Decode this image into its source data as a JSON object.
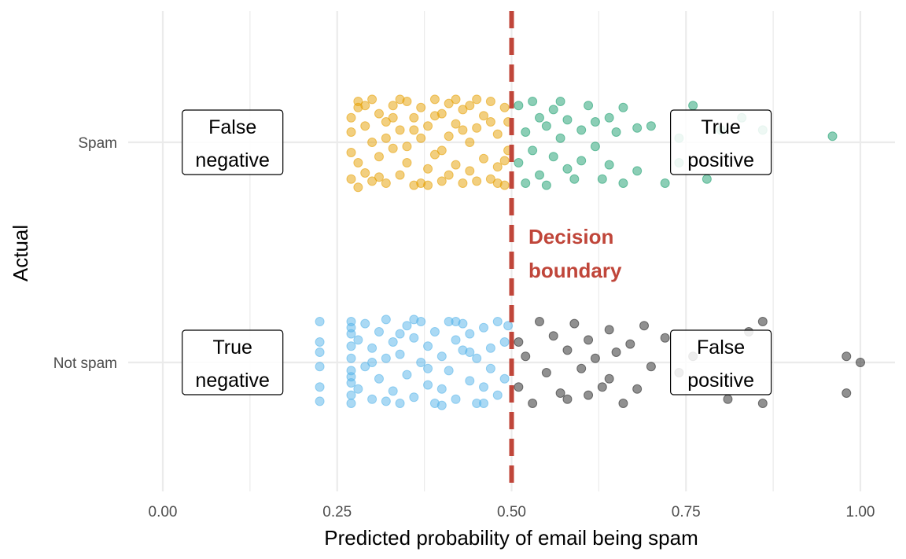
{
  "chart_data": {
    "type": "scatter",
    "xlabel": "Predicted probability of email being spam",
    "ylabel": "Actual",
    "xlim": [
      0.0,
      1.05
    ],
    "x_ticks": [
      "0.00",
      "0.25",
      "0.50",
      "0.75",
      "1.00"
    ],
    "x_tick_values": [
      0.0,
      0.25,
      0.5,
      0.75,
      1.0
    ],
    "categories": [
      "Not spam",
      "Spam"
    ],
    "grid": true,
    "decision_boundary": {
      "x": 0.5,
      "label_lines": [
        "Decision",
        "boundary"
      ],
      "color": "#c0463a"
    },
    "quadrant_labels": [
      {
        "lines": [
          "False",
          "negative"
        ],
        "x": 0.1,
        "category": "Spam"
      },
      {
        "lines": [
          "True",
          "positive"
        ],
        "x": 0.8,
        "category": "Spam"
      },
      {
        "lines": [
          "True",
          "negative"
        ],
        "x": 0.1,
        "category": "Not spam"
      },
      {
        "lines": [
          "False",
          "positive"
        ],
        "x": 0.8,
        "category": "Not spam"
      }
    ],
    "series": [
      {
        "category": "Spam",
        "outcome": "false negative",
        "color": "#e69f00",
        "points": [
          [
            0.27,
            0.12
          ],
          [
            0.27,
            -0.18
          ],
          [
            0.27,
            0.05
          ],
          [
            0.28,
            -0.1
          ],
          [
            0.28,
            0.17
          ],
          [
            0.27,
            -0.05
          ],
          [
            0.28,
            0.2
          ],
          [
            0.28,
            -0.22
          ],
          [
            0.29,
            0.08
          ],
          [
            0.29,
            -0.15
          ],
          [
            0.3,
            0.21
          ],
          [
            0.3,
            0.0
          ],
          [
            0.3,
            -0.19
          ],
          [
            0.31,
            0.14
          ],
          [
            0.31,
            -0.07
          ],
          [
            0.32,
            0.1
          ],
          [
            0.32,
            -0.2
          ],
          [
            0.33,
            0.18
          ],
          [
            0.33,
            -0.03
          ],
          [
            0.34,
            0.06
          ],
          [
            0.34,
            -0.16
          ],
          [
            0.35,
            0.2
          ],
          [
            0.35,
            -0.1
          ],
          [
            0.36,
            0.12
          ],
          [
            0.36,
            -0.21
          ],
          [
            0.37,
            0.02
          ],
          [
            0.37,
            0.17
          ],
          [
            0.38,
            -0.13
          ],
          [
            0.38,
            0.08
          ],
          [
            0.39,
            0.21
          ],
          [
            0.39,
            -0.06
          ],
          [
            0.4,
            0.14
          ],
          [
            0.4,
            -0.19
          ],
          [
            0.41,
            0.03
          ],
          [
            0.41,
            0.19
          ],
          [
            0.42,
            -0.11
          ],
          [
            0.42,
            0.09
          ],
          [
            0.43,
            -0.2
          ],
          [
            0.43,
            0.16
          ],
          [
            0.44,
            0.0
          ],
          [
            0.44,
            -0.14
          ],
          [
            0.45,
            0.21
          ],
          [
            0.45,
            0.07
          ],
          [
            0.46,
            -0.08
          ],
          [
            0.46,
            0.13
          ],
          [
            0.47,
            -0.18
          ],
          [
            0.47,
            0.2
          ],
          [
            0.48,
            0.04
          ],
          [
            0.48,
            -0.12
          ],
          [
            0.49,
            0.17
          ],
          [
            0.49,
            -0.21
          ],
          [
            0.495,
            0.1
          ],
          [
            0.495,
            -0.04
          ],
          [
            0.29,
            0.18
          ],
          [
            0.31,
            -0.17
          ],
          [
            0.33,
            0.12
          ],
          [
            0.35,
            -0.02
          ],
          [
            0.37,
            -0.2
          ],
          [
            0.39,
            0.13
          ],
          [
            0.41,
            -0.16
          ],
          [
            0.43,
            0.06
          ],
          [
            0.45,
            -0.19
          ],
          [
            0.47,
            0.1
          ],
          [
            0.49,
            -0.09
          ],
          [
            0.32,
            0.02
          ],
          [
            0.36,
            0.06
          ],
          [
            0.4,
            -0.04
          ],
          [
            0.44,
            0.18
          ],
          [
            0.48,
            -0.2
          ],
          [
            0.34,
            0.21
          ],
          [
            0.38,
            -0.21
          ],
          [
            0.42,
            0.21
          ]
        ]
      },
      {
        "category": "Spam",
        "outcome": "true positive",
        "color": "#1a9e6e",
        "points": [
          [
            0.51,
            0.18
          ],
          [
            0.51,
            -0.1
          ],
          [
            0.52,
            0.05
          ],
          [
            0.52,
            -0.2
          ],
          [
            0.53,
            0.2
          ],
          [
            0.53,
            -0.04
          ],
          [
            0.54,
            0.12
          ],
          [
            0.54,
            -0.16
          ],
          [
            0.55,
            0.08
          ],
          [
            0.55,
            -0.21
          ],
          [
            0.56,
            0.16
          ],
          [
            0.56,
            -0.07
          ],
          [
            0.57,
            0.02
          ],
          [
            0.57,
            0.2
          ],
          [
            0.58,
            -0.13
          ],
          [
            0.58,
            0.11
          ],
          [
            0.59,
            -0.18
          ],
          [
            0.6,
            0.06
          ],
          [
            0.6,
            -0.09
          ],
          [
            0.61,
            0.18
          ],
          [
            0.62,
            -0.02
          ],
          [
            0.62,
            0.1
          ],
          [
            0.63,
            -0.18
          ],
          [
            0.64,
            0.12
          ],
          [
            0.64,
            -0.11
          ],
          [
            0.65,
            0.05
          ],
          [
            0.66,
            -0.2
          ],
          [
            0.66,
            0.17
          ],
          [
            0.68,
            0.07
          ],
          [
            0.68,
            -0.14
          ],
          [
            0.7,
            0.08
          ],
          [
            0.72,
            -0.2
          ],
          [
            0.74,
            0.02
          ],
          [
            0.74,
            -0.1
          ],
          [
            0.76,
            0.18
          ],
          [
            0.78,
            -0.18
          ],
          [
            0.8,
            0.06
          ],
          [
            0.83,
            0.12
          ],
          [
            0.86,
            0.06
          ],
          [
            0.96,
            0.03
          ]
        ]
      },
      {
        "category": "Not spam",
        "outcome": "true negative",
        "color": "#56b4e9",
        "points": [
          [
            0.225,
            0.2
          ],
          [
            0.225,
            0.1
          ],
          [
            0.225,
            -0.02
          ],
          [
            0.225,
            -0.12
          ],
          [
            0.225,
            -0.19
          ],
          [
            0.225,
            0.05
          ],
          [
            0.27,
            0.2
          ],
          [
            0.27,
            0.14
          ],
          [
            0.27,
            0.08
          ],
          [
            0.27,
            0.02
          ],
          [
            0.27,
            -0.04
          ],
          [
            0.27,
            -0.1
          ],
          [
            0.27,
            -0.16
          ],
          [
            0.27,
            -0.2
          ],
          [
            0.27,
            0.17
          ],
          [
            0.27,
            -0.07
          ],
          [
            0.28,
            0.11
          ],
          [
            0.28,
            -0.13
          ],
          [
            0.29,
            0.19
          ],
          [
            0.29,
            -0.02
          ],
          [
            0.3,
            0.07
          ],
          [
            0.3,
            -0.18
          ],
          [
            0.31,
            0.15
          ],
          [
            0.31,
            -0.08
          ],
          [
            0.32,
            0.02
          ],
          [
            0.32,
            0.21
          ],
          [
            0.33,
            -0.14
          ],
          [
            0.33,
            0.1
          ],
          [
            0.34,
            -0.2
          ],
          [
            0.34,
            0.04
          ],
          [
            0.35,
            0.18
          ],
          [
            0.35,
            -0.06
          ],
          [
            0.36,
            0.12
          ],
          [
            0.36,
            -0.17
          ],
          [
            0.37,
            0.0
          ],
          [
            0.37,
            0.2
          ],
          [
            0.38,
            -0.11
          ],
          [
            0.38,
            0.08
          ],
          [
            0.39,
            -0.2
          ],
          [
            0.39,
            0.15
          ],
          [
            0.4,
            0.03
          ],
          [
            0.4,
            -0.13
          ],
          [
            0.41,
            0.2
          ],
          [
            0.41,
            -0.04
          ],
          [
            0.42,
            0.11
          ],
          [
            0.42,
            -0.18
          ],
          [
            0.43,
            0.06
          ],
          [
            0.43,
            0.19
          ],
          [
            0.44,
            -0.09
          ],
          [
            0.44,
            0.14
          ],
          [
            0.45,
            -0.2
          ],
          [
            0.45,
            0.02
          ],
          [
            0.46,
            0.17
          ],
          [
            0.46,
            -0.12
          ],
          [
            0.47,
            0.07
          ],
          [
            0.47,
            -0.03
          ],
          [
            0.48,
            0.2
          ],
          [
            0.48,
            -0.16
          ],
          [
            0.49,
            0.1
          ],
          [
            0.49,
            -0.08
          ],
          [
            0.495,
            0.18
          ],
          [
            0.3,
            0.0
          ],
          [
            0.34,
            0.14
          ],
          [
            0.38,
            -0.03
          ],
          [
            0.42,
            0.2
          ],
          [
            0.46,
            -0.2
          ],
          [
            0.32,
            -0.19
          ],
          [
            0.36,
            0.21
          ],
          [
            0.4,
            -0.21
          ],
          [
            0.44,
            0.05
          ]
        ]
      },
      {
        "category": "Not spam",
        "outcome": "false positive",
        "color": "#222222",
        "points": [
          [
            0.51,
            0.1
          ],
          [
            0.51,
            -0.12
          ],
          [
            0.52,
            0.03
          ],
          [
            0.53,
            -0.2
          ],
          [
            0.54,
            0.2
          ],
          [
            0.55,
            -0.05
          ],
          [
            0.56,
            0.13
          ],
          [
            0.57,
            -0.15
          ],
          [
            0.58,
            0.06
          ],
          [
            0.58,
            -0.18
          ],
          [
            0.59,
            0.19
          ],
          [
            0.6,
            -0.03
          ],
          [
            0.61,
            0.11
          ],
          [
            0.61,
            -0.16
          ],
          [
            0.62,
            0.02
          ],
          [
            0.63,
            -0.12
          ],
          [
            0.64,
            0.16
          ],
          [
            0.64,
            -0.08
          ],
          [
            0.65,
            0.05
          ],
          [
            0.66,
            -0.2
          ],
          [
            0.67,
            0.09
          ],
          [
            0.68,
            -0.13
          ],
          [
            0.69,
            0.18
          ],
          [
            0.7,
            -0.02
          ],
          [
            0.72,
            0.12
          ],
          [
            0.74,
            -0.05
          ],
          [
            0.76,
            0.03
          ],
          [
            0.81,
            -0.18
          ],
          [
            0.84,
            0.15
          ],
          [
            0.86,
            0.2
          ],
          [
            0.86,
            -0.2
          ],
          [
            0.98,
            0.03
          ],
          [
            0.98,
            -0.15
          ],
          [
            1.0,
            0.0
          ]
        ]
      }
    ]
  }
}
